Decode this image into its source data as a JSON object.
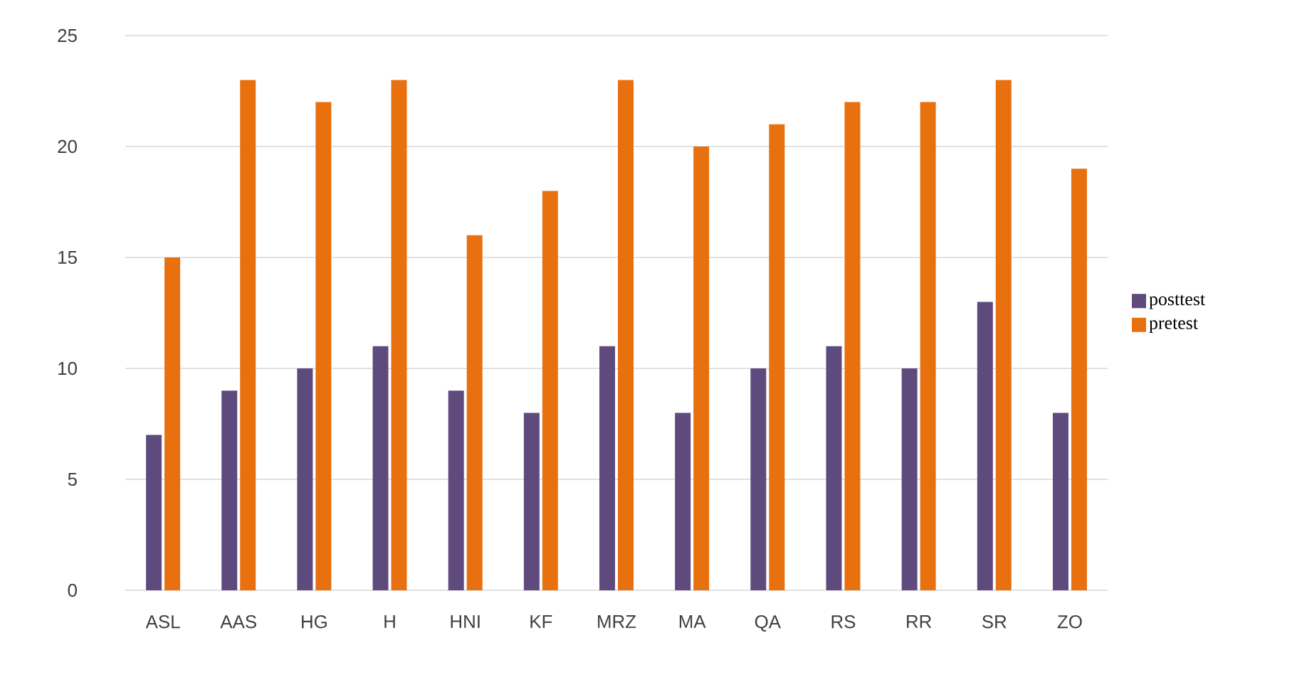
{
  "chart_data": {
    "type": "bar",
    "categories": [
      "ASL",
      "AAS",
      "HG",
      "H",
      "HNI",
      "KF",
      "MRZ",
      "MA",
      "QA",
      "RS",
      "RR",
      "SR",
      "ZO"
    ],
    "series": [
      {
        "name": "posttest",
        "color": "#5f4a7e",
        "values": [
          7,
          9,
          10,
          11,
          9,
          8,
          11,
          8,
          10,
          11,
          10,
          13,
          8
        ]
      },
      {
        "name": "pretest",
        "color": "#e8700e",
        "values": [
          15,
          23,
          22,
          23,
          16,
          18,
          23,
          20,
          21,
          22,
          22,
          23,
          19
        ]
      }
    ],
    "ylim": [
      0,
      25
    ],
    "yticks": [
      0,
      5,
      10,
      15,
      20,
      25
    ],
    "grid": "y",
    "legend": "right"
  }
}
